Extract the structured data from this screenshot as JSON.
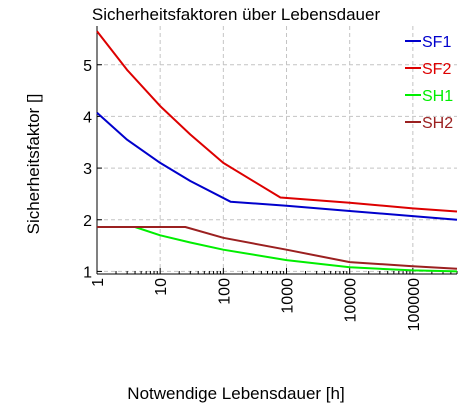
{
  "chart_data": {
    "type": "line",
    "title": "Sicherheitsfaktoren über Lebensdauer",
    "xlabel": "Notwendige Lebensdauer [h]",
    "ylabel": "Sicherheitsfaktor []",
    "x_scale": "log",
    "xlim": [
      1,
      500000
    ],
    "ylim": [
      0.95,
      5.75
    ],
    "x_ticks": [
      1,
      10,
      100,
      1000,
      10000,
      100000
    ],
    "x_tick_labels": [
      "1",
      "10",
      "100",
      "1000",
      "10000",
      "100000"
    ],
    "y_ticks": [
      1,
      2,
      3,
      4,
      5
    ],
    "y_tick_labels": [
      "1",
      "2",
      "3",
      "4",
      "5"
    ],
    "grid": true,
    "legend_position": "top-right",
    "series": [
      {
        "name": "SF1",
        "color": "#0000cc",
        "x": [
          1,
          3,
          10,
          30,
          130,
          1000,
          10000,
          100000,
          500000
        ],
        "y": [
          4.07,
          3.55,
          3.1,
          2.75,
          2.35,
          2.27,
          2.17,
          2.07,
          2.0
        ]
      },
      {
        "name": "SF2",
        "color": "#dd0000",
        "x": [
          1,
          3,
          10,
          30,
          100,
          800,
          10000,
          100000,
          500000
        ],
        "y": [
          5.65,
          4.9,
          4.2,
          3.65,
          3.1,
          2.43,
          2.33,
          2.22,
          2.16
        ]
      },
      {
        "name": "SH1",
        "color": "#00ee00",
        "x": [
          1,
          4,
          10,
          30,
          100,
          1000,
          10000,
          100000,
          500000
        ],
        "y": [
          1.86,
          1.86,
          1.7,
          1.56,
          1.42,
          1.22,
          1.08,
          1.02,
          1.0
        ]
      },
      {
        "name": "SH2",
        "color": "#9b2020",
        "x": [
          1,
          25,
          100,
          1000,
          10000,
          100000,
          500000
        ],
        "y": [
          1.86,
          1.86,
          1.65,
          1.42,
          1.18,
          1.1,
          1.05
        ]
      }
    ]
  }
}
